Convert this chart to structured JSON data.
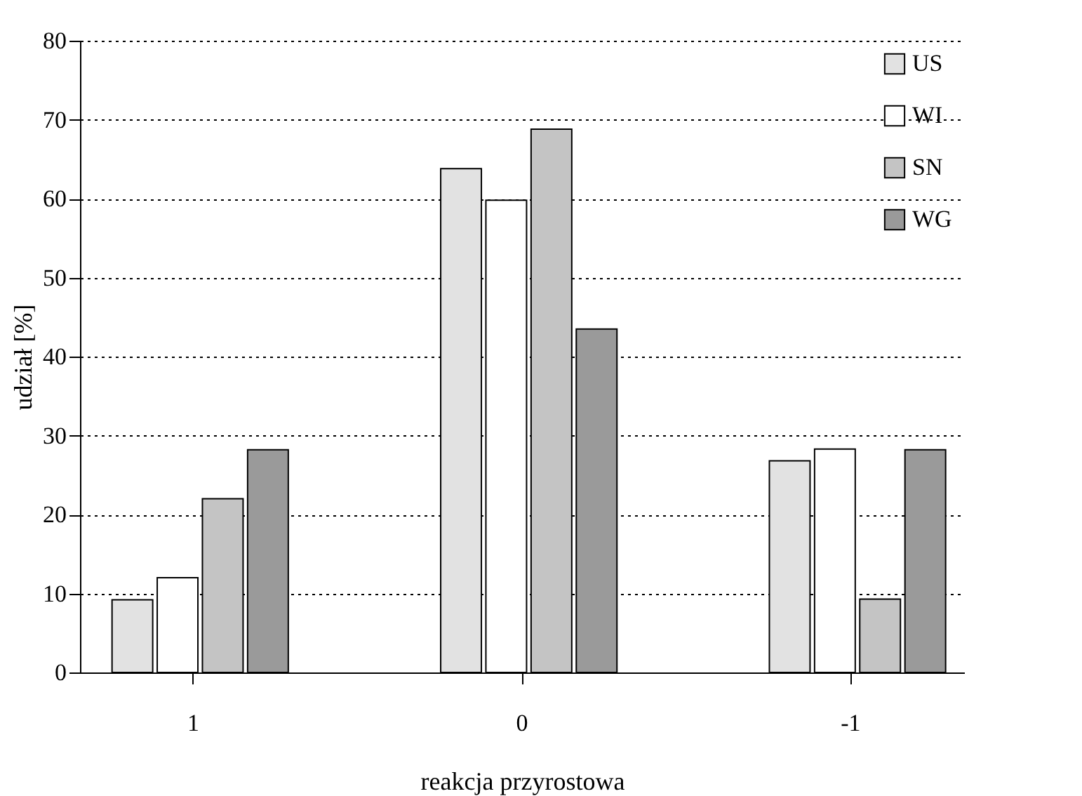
{
  "chart_data": {
    "type": "bar",
    "xlabel": "reakcja przyrostowa",
    "ylabel": "udział [%]",
    "categories": [
      "1",
      "0",
      "-1"
    ],
    "series": [
      {
        "name": "US",
        "color": "#e2e2e2",
        "values": [
          9.2,
          63.8,
          26.8
        ]
      },
      {
        "name": "WI",
        "color": "#ffffff",
        "values": [
          12,
          59.8,
          28.3
        ]
      },
      {
        "name": "SN",
        "color": "#c4c4c4",
        "values": [
          22,
          68.8,
          9.3
        ]
      },
      {
        "name": "WG",
        "color": "#9a9a9a",
        "values": [
          28.2,
          43.5,
          28.2
        ]
      }
    ],
    "ylim": [
      0,
      80
    ],
    "yticks": [
      0,
      10,
      20,
      30,
      40,
      50,
      60,
      70,
      80
    ],
    "grid": "y",
    "legend": "top right"
  }
}
